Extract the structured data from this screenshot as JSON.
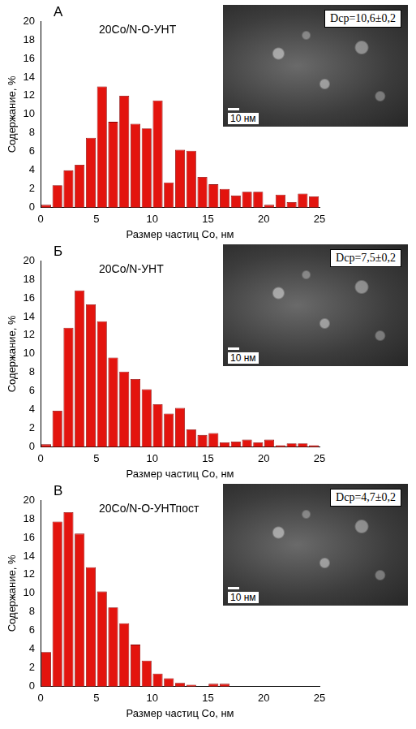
{
  "chart_data": [
    {
      "type": "histogram",
      "panel": "А",
      "title": "20Co/N-O-УНТ",
      "x_label": "Размер частиц Co, нм",
      "y_label": "Содержание, %",
      "bins": [
        0,
        1,
        2,
        3,
        4,
        5,
        6,
        7,
        8,
        9,
        10,
        11,
        12,
        13,
        14,
        15,
        16,
        17,
        18,
        19,
        20,
        21,
        22,
        23,
        24,
        25
      ],
      "values": [
        0.3,
        2.4,
        4,
        4.6,
        7.5,
        13,
        9.2,
        12,
        9,
        8.5,
        11.5,
        2.7,
        6.2,
        6.1,
        3.3,
        2.5,
        2,
        1.3,
        1.7,
        1.7,
        0.3,
        1.4,
        0.6,
        1.5,
        1.2
      ],
      "color": "#e3140e",
      "xlim": [
        0,
        25
      ],
      "xticks": [
        0,
        5,
        10,
        15,
        20,
        25
      ],
      "ylim": [
        0,
        20
      ],
      "yticks": [
        0,
        2,
        4,
        6,
        8,
        10,
        12,
        14,
        16,
        18,
        20
      ],
      "grid": false,
      "annotations": {
        "mean_size": "Dср=10,6±0,2",
        "scale_bar": "10 нм"
      }
    },
    {
      "type": "histogram",
      "panel": "Б",
      "title": "20Co/N-УНТ",
      "x_label": "Размер частиц Co, нм",
      "y_label": "Содержание, %",
      "bins": [
        0,
        1,
        2,
        3,
        4,
        5,
        6,
        7,
        8,
        9,
        10,
        11,
        12,
        13,
        14,
        15,
        16,
        17,
        18,
        19,
        20,
        21,
        22,
        23,
        24,
        25
      ],
      "values": [
        0.3,
        3.9,
        12.8,
        16.8,
        15.3,
        13.5,
        9.6,
        8.1,
        7.3,
        6.2,
        4.6,
        3.6,
        4.2,
        1.9,
        1.3,
        1.5,
        0.5,
        0.6,
        0.8,
        0.5,
        0.8,
        0.2,
        0.4,
        0.4,
        0.2
      ],
      "color": "#e3140e",
      "xlim": [
        0,
        25
      ],
      "xticks": [
        0,
        5,
        10,
        15,
        20,
        25
      ],
      "ylim": [
        0,
        20
      ],
      "yticks": [
        0,
        2,
        4,
        6,
        8,
        10,
        12,
        14,
        16,
        18,
        20
      ],
      "grid": false,
      "annotations": {
        "mean_size": "Dср=7,5±0,2",
        "scale_bar": "10 нм"
      }
    },
    {
      "type": "histogram",
      "panel": "В",
      "title": "20Co/N-O-УНТпост",
      "x_label": "Размер частиц Co, нм",
      "y_label": "Содержание, %",
      "bins": [
        0,
        1,
        2,
        3,
        4,
        5,
        6,
        7,
        8,
        9,
        10,
        11,
        12,
        13,
        14,
        15,
        16,
        17,
        18,
        19,
        20,
        21,
        22,
        23,
        24,
        25
      ],
      "values": [
        3.7,
        17.7,
        18.7,
        16.4,
        12.8,
        10.2,
        8.5,
        6.8,
        4.5,
        2.8,
        1.4,
        0.9,
        0.4,
        0.2,
        0,
        0.3,
        0.3,
        0,
        0,
        0,
        0,
        0,
        0,
        0,
        0
      ],
      "color": "#e3140e",
      "xlim": [
        0,
        25
      ],
      "xticks": [
        0,
        5,
        10,
        15,
        20,
        25
      ],
      "ylim": [
        0,
        20
      ],
      "yticks": [
        0,
        2,
        4,
        6,
        8,
        10,
        12,
        14,
        16,
        18,
        20
      ],
      "grid": false,
      "annotations": {
        "mean_size": "Dср=4,7±0,2",
        "scale_bar": "10 нм"
      }
    }
  ]
}
